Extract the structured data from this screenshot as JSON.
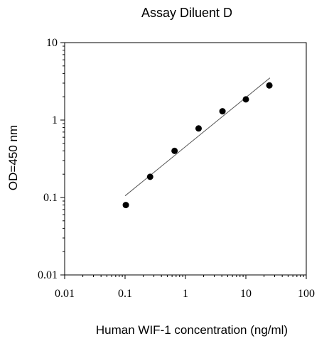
{
  "chart_data": {
    "type": "scatter",
    "title": "Assay Diluent D",
    "xlabel": "Human WIF-1 concentration (ng/ml)",
    "ylabel": "OD=450 nm",
    "x_scale": "log",
    "y_scale": "log",
    "xlim": [
      0.01,
      100
    ],
    "ylim": [
      0.01,
      10
    ],
    "x_ticks": [
      "0.01",
      "0.1",
      "1",
      "10",
      "100"
    ],
    "y_ticks": [
      "0.01",
      "0.1",
      "1",
      "10"
    ],
    "grid": false,
    "series": [
      {
        "x": [
          0.103,
          0.26,
          0.66,
          1.65,
          4.1,
          10.0,
          24.5
        ],
        "y": [
          0.08,
          0.185,
          0.4,
          0.78,
          1.3,
          1.85,
          2.8
        ],
        "marker": "circle",
        "color": "#000000"
      }
    ],
    "fit_line": {
      "x": [
        0.1,
        25
      ],
      "y": [
        0.105,
        3.5
      ],
      "color": "#555555"
    }
  }
}
